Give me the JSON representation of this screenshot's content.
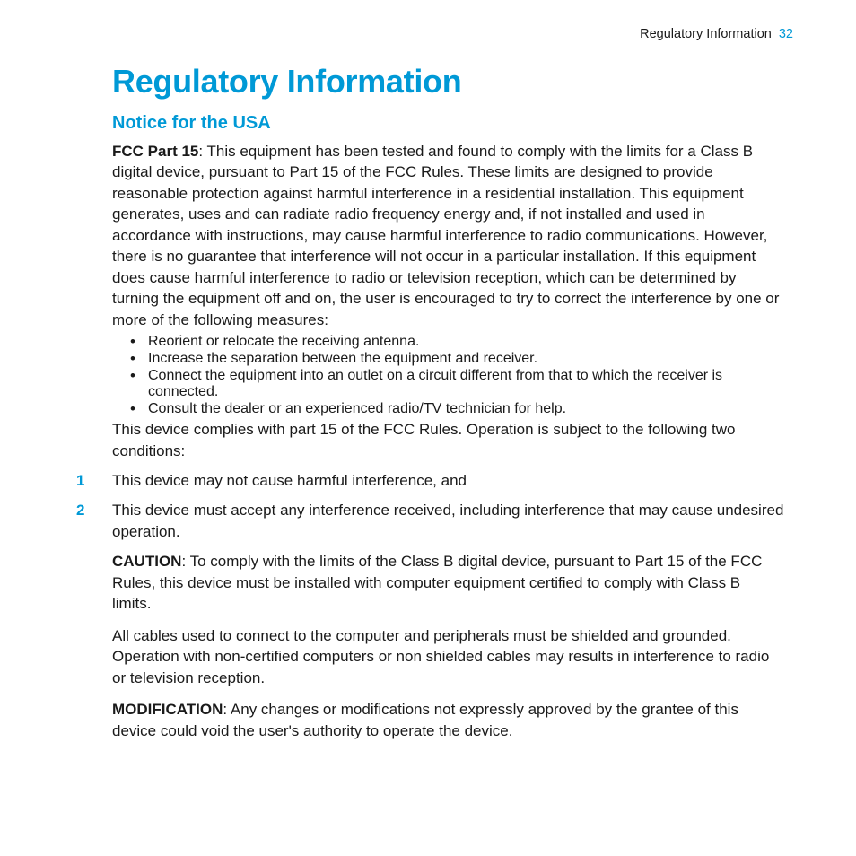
{
  "colors": {
    "accent": "#0099d6",
    "text": "#1a1a1a",
    "background": "#ffffff"
  },
  "typography": {
    "title_fontsize_pt": 27,
    "subtitle_fontsize_pt": 15,
    "body_fontsize_pt": 13,
    "font_family": "Arial / Helvetica (sans-serif)",
    "title_weight": 700,
    "subtitle_weight": 700
  },
  "header": {
    "section_name": "Regulatory Information",
    "page_number": "32"
  },
  "title": "Regulatory Information",
  "subtitle": "Notice for the USA",
  "intro": {
    "bold_lead": "FCC Part 15",
    "text": ": This equipment has been tested and found to comply with the limits for a Class B digital device, pursuant to Part 15 of the FCC Rules. These limits are designed to provide reasonable protection against harmful interference in a residential installation. This equipment generates, uses and can radiate radio frequency energy and, if not installed and used in accordance with instructions, may cause harmful interference to radio communications. However, there is no guarantee that interference will not occur in a particular installation. If this equipment does cause harmful interference to radio or television reception, which can be determined by turning the equipment off and on, the user is encouraged to try to correct the interference by one or more of the following measures:"
  },
  "bullets": [
    "Reorient or relocate the receiving antenna.",
    "Increase the separation between the equipment and receiver.",
    "Connect the equipment into an outlet on a circuit different from that to which the receiver is connected.",
    "Consult the dealer or an experienced radio/TV technician for help."
  ],
  "compliance_intro": "This device complies with part 15 of the FCC Rules. Operation is subject to the following two conditions:",
  "numbered": [
    {
      "num": "1",
      "text": "This device may not cause harmful interference, and"
    },
    {
      "num": "2",
      "text": "This device must accept any interference received, including interference that may cause undesired operation."
    }
  ],
  "caution": {
    "label": "CAUTION",
    "text": ": To comply with the limits of the Class B digital device, pursuant to Part 15 of the FCC Rules, this device must be installed with computer equipment certified to comply with Class B limits."
  },
  "cables": "All cables used to connect to the computer and peripherals must be shielded and grounded. Operation with non-certified computers or non shielded cables may results in interference to radio or television reception.",
  "modification": {
    "label": "MODIFICATION",
    "text": ": Any changes or modifications not expressly approved by the grantee of this device could void the user's authority to operate the device."
  }
}
